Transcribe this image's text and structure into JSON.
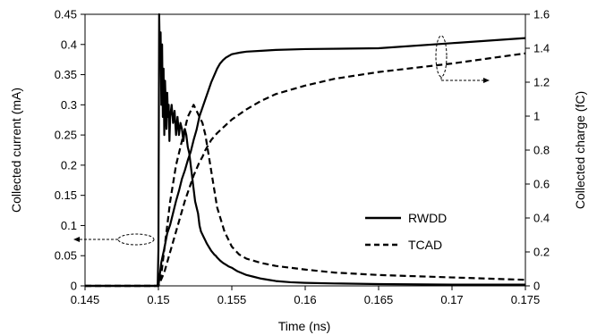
{
  "chart_data": {
    "type": "line",
    "xlabel": "Time (ns)",
    "ylabel_left": "Collected current (mA)",
    "ylabel_right": "Collected charge (fC)",
    "xlim": [
      0.145,
      0.175
    ],
    "ylim_left": [
      0,
      0.45
    ],
    "ylim_right": [
      0,
      1.6
    ],
    "x_ticks": [
      "0.145",
      "0.15",
      "0.155",
      "0.16",
      "0.165",
      "0.17",
      "0.175"
    ],
    "y_left_ticks": [
      "0",
      "0.05",
      "0.1",
      "0.15",
      "0.2",
      "0.25",
      "0.3",
      "0.35",
      "0.4",
      "0.45"
    ],
    "y_right_ticks": [
      "0",
      "0.2",
      "0.4",
      "0.6",
      "0.8",
      "1",
      "1.2",
      "1.4",
      "1.6"
    ],
    "grid": false,
    "legend_position": "center-right",
    "legend": [
      {
        "label": "RWDD",
        "style": "solid"
      },
      {
        "label": "TCAD",
        "style": "dashed"
      }
    ],
    "series": [
      {
        "name": "RWDD",
        "quantity": "current",
        "axis": "left",
        "style": "solid",
        "x": [
          0.145,
          0.14995,
          0.15,
          0.15005,
          0.1501,
          0.15015,
          0.1502,
          0.15025,
          0.1503,
          0.15035,
          0.1504,
          0.15045,
          0.1505,
          0.15055,
          0.1506,
          0.15065,
          0.1507,
          0.15075,
          0.1508,
          0.1509,
          0.151,
          0.1511,
          0.1512,
          0.1513,
          0.1514,
          0.1515,
          0.1516,
          0.1517,
          0.1518,
          0.1519,
          0.152,
          0.1521,
          0.1522,
          0.1523,
          0.1524,
          0.1525,
          0.1526,
          0.1527,
          0.1528,
          0.1529,
          0.153,
          0.1531,
          0.1532,
          0.1533,
          0.1534,
          0.1535,
          0.1536,
          0.1537,
          0.1538,
          0.1539,
          0.154,
          0.1542,
          0.1544,
          0.1546,
          0.1548,
          0.155,
          0.1552,
          0.1554,
          0.1556,
          0.1558,
          0.156,
          0.1565,
          0.157,
          0.1575,
          0.158,
          0.159,
          0.16,
          0.162,
          0.165,
          0.17,
          0.175
        ],
        "y": [
          0,
          0,
          0.06,
          0.45,
          0.38,
          0.42,
          0.3,
          0.4,
          0.28,
          0.36,
          0.25,
          0.34,
          0.3,
          0.26,
          0.32,
          0.28,
          0.3,
          0.24,
          0.28,
          0.3,
          0.27,
          0.29,
          0.25,
          0.28,
          0.25,
          0.27,
          0.26,
          0.24,
          0.26,
          0.25,
          0.23,
          0.22,
          0.2,
          0.18,
          0.16,
          0.14,
          0.13,
          0.12,
          0.1,
          0.09,
          0.085,
          0.08,
          0.075,
          0.07,
          0.066,
          0.062,
          0.058,
          0.055,
          0.052,
          0.05,
          0.047,
          0.042,
          0.038,
          0.035,
          0.032,
          0.03,
          0.027,
          0.024,
          0.022,
          0.02,
          0.018,
          0.015,
          0.012,
          0.01,
          0.008,
          0.006,
          0.005,
          0.004,
          0.003,
          0.002,
          0.002
        ]
      },
      {
        "name": "TCAD",
        "quantity": "current",
        "axis": "left",
        "style": "dashed",
        "x": [
          0.145,
          0.15,
          0.1502,
          0.1504,
          0.1506,
          0.1508,
          0.151,
          0.1512,
          0.1514,
          0.1516,
          0.1518,
          0.152,
          0.1522,
          0.1524,
          0.1526,
          0.1528,
          0.153,
          0.1532,
          0.1534,
          0.1536,
          0.1538,
          0.154,
          0.1545,
          0.155,
          0.1555,
          0.156,
          0.157,
          0.158,
          0.16,
          0.162,
          0.165,
          0.17,
          0.175
        ],
        "y": [
          0,
          0,
          0.02,
          0.06,
          0.1,
          0.14,
          0.17,
          0.2,
          0.22,
          0.24,
          0.26,
          0.28,
          0.29,
          0.3,
          0.29,
          0.28,
          0.27,
          0.25,
          0.22,
          0.19,
          0.16,
          0.13,
          0.09,
          0.065,
          0.052,
          0.045,
          0.038,
          0.033,
          0.027,
          0.022,
          0.018,
          0.014,
          0.01
        ]
      },
      {
        "name": "RWDD",
        "quantity": "charge",
        "axis": "right",
        "style": "solid",
        "x": [
          0.145,
          0.15,
          0.1502,
          0.1504,
          0.1506,
          0.1508,
          0.151,
          0.1512,
          0.1514,
          0.1516,
          0.1518,
          0.152,
          0.1522,
          0.1524,
          0.1526,
          0.1528,
          0.153,
          0.1532,
          0.1534,
          0.1536,
          0.1538,
          0.154,
          0.1542,
          0.1544,
          0.1546,
          0.1548,
          0.155,
          0.1553,
          0.1556,
          0.156,
          0.157,
          0.158,
          0.16,
          0.165,
          0.17,
          0.175
        ],
        "y": [
          0,
          0,
          0.14,
          0.22,
          0.31,
          0.36,
          0.43,
          0.5,
          0.56,
          0.63,
          0.68,
          0.74,
          0.79,
          0.86,
          0.92,
          1.0,
          1.05,
          1.1,
          1.15,
          1.2,
          1.24,
          1.28,
          1.31,
          1.33,
          1.345,
          1.355,
          1.365,
          1.37,
          1.375,
          1.38,
          1.385,
          1.39,
          1.395,
          1.4,
          1.43,
          1.46
        ]
      },
      {
        "name": "TCAD",
        "quantity": "charge",
        "axis": "right",
        "style": "dashed",
        "x": [
          0.145,
          0.15,
          0.1502,
          0.1504,
          0.1506,
          0.1508,
          0.151,
          0.1512,
          0.1514,
          0.1516,
          0.1518,
          0.152,
          0.1522,
          0.1524,
          0.1526,
          0.1528,
          0.153,
          0.1532,
          0.1534,
          0.1536,
          0.1538,
          0.154,
          0.1545,
          0.155,
          0.1555,
          0.156,
          0.157,
          0.158,
          0.16,
          0.162,
          0.165,
          0.17,
          0.175
        ],
        "y": [
          0,
          0,
          0.04,
          0.08,
          0.14,
          0.2,
          0.26,
          0.32,
          0.38,
          0.44,
          0.5,
          0.55,
          0.6,
          0.65,
          0.69,
          0.73,
          0.76,
          0.8,
          0.83,
          0.86,
          0.88,
          0.9,
          0.94,
          0.98,
          1.01,
          1.04,
          1.09,
          1.13,
          1.18,
          1.22,
          1.26,
          1.31,
          1.37
        ]
      }
    ]
  }
}
